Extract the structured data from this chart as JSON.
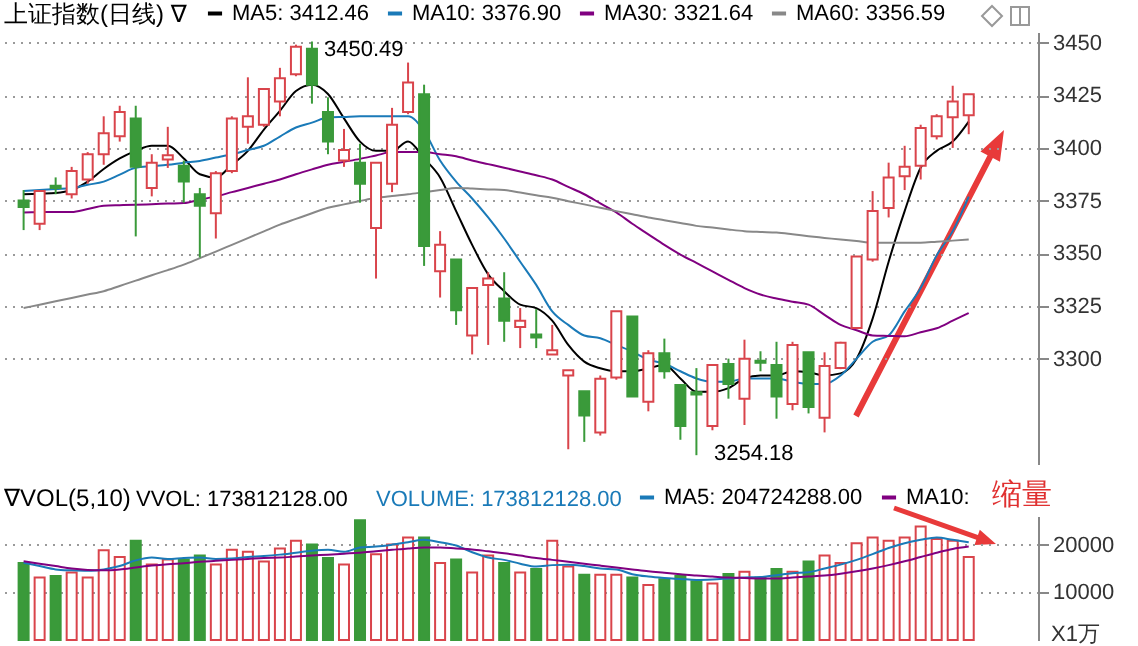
{
  "chart_data": [
    {
      "type": "candlestick",
      "title": "上证指数(日线) ∇",
      "categories": [
        null,
        null,
        null,
        null,
        null,
        null,
        null,
        null,
        null,
        null,
        null,
        null,
        null,
        null,
        null,
        null,
        null,
        null,
        null,
        null,
        null,
        null,
        null,
        null,
        null,
        null,
        null,
        null,
        null,
        null,
        null,
        null,
        null,
        null,
        null,
        null,
        null,
        null,
        null,
        null,
        null,
        null,
        null,
        null,
        null,
        null,
        null,
        null,
        null,
        null,
        null,
        null,
        null,
        null,
        null,
        null,
        null,
        null,
        null,
        null
      ],
      "ohlc": [
        [
          3375,
          3380,
          3361,
          3372
        ],
        [
          3364,
          3380,
          3361,
          3379.5
        ],
        [
          3382,
          3386,
          3378,
          3381
        ],
        [
          3378,
          3391,
          3376,
          3389
        ],
        [
          3385,
          3398,
          3383,
          3397
        ],
        [
          3397,
          3415,
          3392,
          3407
        ],
        [
          3405.5,
          3420,
          3403,
          3417
        ],
        [
          3414,
          3420,
          3358,
          3391
        ],
        [
          3381,
          3397,
          3377,
          3393
        ],
        [
          3394.5,
          3410,
          3390.5,
          3396.5
        ],
        [
          3391.5,
          3394,
          3374,
          3384
        ],
        [
          3378,
          3381,
          3348,
          3372.5
        ],
        [
          3369,
          3389,
          3357,
          3388
        ],
        [
          3389,
          3415,
          3388,
          3414
        ],
        [
          3410,
          3433.5,
          3402,
          3415
        ],
        [
          3411,
          3428,
          3410,
          3428
        ],
        [
          3422,
          3438,
          3415,
          3433
        ],
        [
          3435,
          3449,
          3434,
          3448
        ],
        [
          3447,
          3450.49,
          3421,
          3430
        ],
        [
          3417,
          3424,
          3397,
          3403
        ],
        [
          3394,
          3409,
          3391,
          3399
        ],
        [
          3393,
          3402,
          3374,
          3383
        ],
        [
          3362,
          3393,
          3338,
          3393
        ],
        [
          3383,
          3419,
          3379,
          3411
        ],
        [
          3417,
          3440.5,
          3416,
          3431
        ],
        [
          3425.5,
          3430,
          3344,
          3353.5
        ],
        [
          3341.5,
          3360.5,
          3329,
          3354
        ],
        [
          3347,
          3347,
          3316,
          3323
        ],
        [
          3311,
          3333.5,
          3302,
          3333.5
        ],
        [
          3335,
          3341,
          3306.5,
          3338
        ],
        [
          3328.5,
          3341,
          3308,
          3318
        ],
        [
          3315,
          3324,
          3305,
          3318
        ],
        [
          3311.5,
          3323.5,
          3305,
          3310
        ],
        [
          3302,
          3316,
          3302,
          3304
        ],
        [
          3292,
          3294.5,
          3257,
          3294.5
        ],
        [
          3284.5,
          3284.5,
          3260.5,
          3273
        ],
        [
          3265,
          3292,
          3263.5,
          3290.5
        ],
        [
          3291,
          3322.5,
          3290,
          3322.5
        ],
        [
          3320,
          3320,
          3282,
          3282
        ],
        [
          3279.5,
          3304,
          3275,
          3302.5
        ],
        [
          3302.5,
          3309.5,
          3290.5,
          3294
        ],
        [
          3287.5,
          3287.5,
          3261.5,
          3268
        ],
        [
          3284,
          3295.5,
          3254.18,
          3283
        ],
        [
          3268,
          3297,
          3266,
          3297
        ],
        [
          3297.5,
          3300,
          3281,
          3288
        ],
        [
          3281,
          3309,
          3268.5,
          3300
        ],
        [
          3299,
          3303.5,
          3294,
          3298
        ],
        [
          3297,
          3308,
          3271.5,
          3282
        ],
        [
          3278.5,
          3308,
          3275.5,
          3306.5
        ],
        [
          3303,
          3303,
          3274,
          3277
        ],
        [
          3272,
          3303,
          3265,
          3296.5
        ],
        [
          3295.5,
          3308,
          3295,
          3307.5
        ],
        [
          3314.5,
          3348.5,
          3314,
          3348.5
        ],
        [
          3347,
          3379.5,
          3346,
          3370
        ],
        [
          3371.5,
          3393,
          3367,
          3386
        ],
        [
          3386.5,
          3401,
          3380,
          3391
        ],
        [
          3391.5,
          3411,
          3385,
          3409.5
        ],
        [
          3405.5,
          3416,
          3404,
          3415
        ],
        [
          3414.5,
          3429.5,
          3400,
          3422
        ],
        [
          3415.5,
          3425.5,
          3406.5,
          3425.5
        ]
      ],
      "colors": [
        "#3a9a3a",
        "#d9444b",
        "#3a9a3a",
        "#d9444b",
        "#d9444b",
        "#d9444b",
        "#d9444b",
        "#3a9a3a",
        "#d9444b",
        "#d9444b",
        "#3a9a3a",
        "#3a9a3a",
        "#d9444b",
        "#d9444b",
        "#d9444b",
        "#d9444b",
        "#d9444b",
        "#d9444b",
        "#3a9a3a",
        "#3a9a3a",
        "#d9444b",
        "#3a9a3a",
        "#d9444b",
        "#d9444b",
        "#d9444b",
        "#3a9a3a",
        "#d9444b",
        "#3a9a3a",
        "#d9444b",
        "#d9444b",
        "#3a9a3a",
        "#d9444b",
        "#3a9a3a",
        "#d9444b",
        "#d9444b",
        "#3a9a3a",
        "#d9444b",
        "#d9444b",
        "#3a9a3a",
        "#d9444b",
        "#3a9a3a",
        "#3a9a3a",
        "#3a9a3a",
        "#d9444b",
        "#3a9a3a",
        "#d9444b",
        "#3a9a3a",
        "#3a9a3a",
        "#d9444b",
        "#3a9a3a",
        "#d9444b",
        "#d9444b",
        "#d9444b",
        "#d9444b",
        "#d9444b",
        "#d9444b",
        "#d9444b",
        "#d9444b",
        "#d9444b",
        "#d9444b"
      ],
      "series": [
        {
          "type": "line",
          "name": "MA5: 3412.46",
          "color": "#000000",
          "values": [
            3378,
            3378.3,
            3378.6,
            3380,
            3384,
            3390,
            3395,
            3398.6,
            3401,
            3401,
            3395,
            3387.5,
            3386,
            3392,
            3398.6,
            3408.7,
            3417.6,
            3427,
            3430,
            3425.6,
            3414,
            3403,
            3398.6,
            3398.6,
            3403,
            3395,
            3386,
            3370,
            3354,
            3340,
            3332,
            3325.6,
            3324,
            3318,
            3306.5,
            3298.6,
            3295.4,
            3294,
            3294,
            3295.4,
            3297,
            3290.6,
            3284.3,
            3284.3,
            3286,
            3290.6,
            3292,
            3292,
            3294,
            3293.5,
            3292,
            3293,
            3300,
            3319,
            3346,
            3370,
            3390.6,
            3398.6,
            3403,
            3412.46
          ]
        },
        {
          "type": "line",
          "name": "MA10: 3376.90",
          "color": "#1a7ab8",
          "values": [
            3379.5,
            3380,
            3380.5,
            3381,
            3382.5,
            3384,
            3387.3,
            3390.6,
            3391.3,
            3392,
            3393,
            3393.8,
            3395.4,
            3397,
            3399,
            3401,
            3405.4,
            3409.7,
            3412,
            3414.4,
            3414.7,
            3415,
            3415,
            3415,
            3415,
            3408,
            3394,
            3384,
            3376,
            3367,
            3357,
            3346,
            3335,
            3322.4,
            3316,
            3311,
            3309.7,
            3306.5,
            3303.3,
            3299.5,
            3297.6,
            3294,
            3290.6,
            3289,
            3289,
            3290.6,
            3290.6,
            3290.6,
            3289,
            3288,
            3288,
            3292,
            3300,
            3308,
            3311,
            3322.4,
            3333.5,
            3349,
            3360.5,
            3376.9
          ]
        },
        {
          "type": "line",
          "name": "MA30: 3321.64",
          "color": "#800080",
          "values": [
            3369.4,
            3369.5,
            3369.6,
            3369.6,
            3371,
            3372.5,
            3372.8,
            3373,
            3373.3,
            3373.6,
            3373.8,
            3375.4,
            3377,
            3379,
            3381,
            3383,
            3385,
            3387.5,
            3389.8,
            3392,
            3393.4,
            3394.8,
            3396.4,
            3398,
            3398,
            3398,
            3397,
            3396,
            3394,
            3392.3,
            3390.6,
            3388.8,
            3387,
            3385,
            3381.5,
            3378,
            3373.7,
            3369.4,
            3364,
            3359,
            3354,
            3349.4,
            3345.4,
            3341.4,
            3337.4,
            3333.5,
            3330.4,
            3328.5,
            3327,
            3325.6,
            3320.8,
            3316,
            3313.5,
            3311,
            3310.8,
            3310.6,
            3312.5,
            3314.4,
            3318,
            3321.64
          ]
        },
        {
          "type": "line",
          "name": "MA60: 3356.59",
          "color": "#888888",
          "values": [
            3324,
            3325.6,
            3327.2,
            3328.8,
            3330.4,
            3332,
            3334.5,
            3337,
            3339.6,
            3342,
            3344.6,
            3347.7,
            3350.8,
            3354,
            3357.2,
            3360.4,
            3363.6,
            3366.3,
            3369,
            3371.6,
            3373.2,
            3374.8,
            3376.3,
            3377.2,
            3378,
            3379,
            3380,
            3381,
            3380.7,
            3380.3,
            3380,
            3378.8,
            3377.5,
            3376.3,
            3374.7,
            3373.2,
            3371.6,
            3370,
            3368.5,
            3367,
            3365.7,
            3364.4,
            3363,
            3362.2,
            3361.3,
            3360.5,
            3360.1,
            3359.8,
            3359,
            3358.1,
            3357.3,
            3356.5,
            3355.8,
            3355,
            3355,
            3355,
            3355,
            3355.5,
            3356,
            3356.59
          ]
        }
      ],
      "ylim": [
        3250,
        3455
      ],
      "yticks": [
        3300,
        3325,
        3350,
        3375,
        3400,
        3425,
        3450
      ],
      "grid": "y",
      "legend": "top",
      "tick_labels": "y",
      "annotations": [
        "3450.49",
        "3254.18"
      ]
    },
    {
      "type": "bar",
      "title": "∇VOL(5,10)",
      "categories": [
        null,
        null,
        null,
        null,
        null,
        null,
        null,
        null,
        null,
        null,
        null,
        null,
        null,
        null,
        null,
        null,
        null,
        null,
        null,
        null,
        null,
        null,
        null,
        null,
        null,
        null,
        null,
        null,
        null,
        null,
        null,
        null,
        null,
        null,
        null,
        null,
        null,
        null,
        null,
        null,
        null,
        null,
        null,
        null,
        null,
        null,
        null,
        null,
        null,
        null,
        null,
        null,
        null,
        null,
        null,
        null,
        null,
        null,
        null,
        null
      ],
      "series": [
        {
          "colors": [
            "#3a9a3a",
            "#d9444b",
            "#3a9a3a",
            "#d9444b",
            "#d9444b",
            "#d9444b",
            "#d9444b",
            "#3a9a3a",
            "#d9444b",
            "#d9444b",
            "#3a9a3a",
            "#3a9a3a",
            "#d9444b",
            "#d9444b",
            "#d9444b",
            "#d9444b",
            "#d9444b",
            "#d9444b",
            "#3a9a3a",
            "#3a9a3a",
            "#d9444b",
            "#3a9a3a",
            "#d9444b",
            "#d9444b",
            "#d9444b",
            "#3a9a3a",
            "#d9444b",
            "#3a9a3a",
            "#d9444b",
            "#d9444b",
            "#3a9a3a",
            "#d9444b",
            "#3a9a3a",
            "#d9444b",
            "#d9444b",
            "#3a9a3a",
            "#d9444b",
            "#d9444b",
            "#3a9a3a",
            "#d9444b",
            "#3a9a3a",
            "#3a9a3a",
            "#3a9a3a",
            "#d9444b",
            "#3a9a3a",
            "#d9444b",
            "#3a9a3a",
            "#3a9a3a",
            "#d9444b",
            "#3a9a3a",
            "#d9444b",
            "#d9444b",
            "#d9444b",
            "#d9444b",
            "#d9444b",
            "#d9444b",
            "#d9444b",
            "#d9444b",
            "#d9444b",
            "#d9444b"
          ],
          "values": [
            16150,
            13100,
            13400,
            14150,
            13100,
            18800,
            17400,
            20800,
            15850,
            16900,
            16900,
            17700,
            15850,
            18900,
            18500,
            16450,
            19200,
            20800,
            20000,
            17200,
            15850,
            25100,
            18000,
            20000,
            21500,
            21500,
            16150,
            16900,
            14150,
            17700,
            16150,
            14150,
            14900,
            20800,
            15400,
            13700,
            13700,
            13700,
            13100,
            11550,
            12750,
            13400,
            12300,
            11850,
            13850,
            14300,
            13100,
            14900,
            14300,
            16450,
            17700,
            16150,
            20300,
            21500,
            20800,
            21500,
            23800,
            21200,
            20800,
            17381
          ]
        },
        {
          "type": "line",
          "name": "MA5: 204724288.00",
          "color": "#1a7ab8",
          "values": [
            16200,
            15500,
            14800,
            14600,
            14500,
            14800,
            15500,
            16700,
            17300,
            17000,
            17200,
            17300,
            17000,
            17100,
            17400,
            17600,
            17900,
            18300,
            18700,
            18900,
            18500,
            19400,
            19600,
            20000,
            20500,
            21000,
            20500,
            19800,
            18400,
            17300,
            16800,
            16000,
            15400,
            15700,
            15800,
            15500,
            15000,
            14800,
            13800,
            13300,
            13000,
            12800,
            12600,
            12700,
            12900,
            13100,
            13200,
            13600,
            14000,
            14200,
            15000,
            15800,
            16800,
            18000,
            19300,
            20300,
            21000,
            21500,
            21000,
            20472
          ]
        },
        {
          "type": "line",
          "name": "MA10:",
          "color": "#800080",
          "values": [
            16500,
            16000,
            15500,
            15000,
            14700,
            14600,
            14800,
            15200,
            15600,
            15900,
            16100,
            16400,
            16600,
            16800,
            17000,
            17200,
            17300,
            17500,
            17700,
            17900,
            18100,
            18300,
            18600,
            18900,
            19200,
            19400,
            19400,
            19200,
            19000,
            18600,
            18200,
            17700,
            17200,
            16800,
            16400,
            16000,
            15600,
            15200,
            14800,
            14400,
            14100,
            13800,
            13500,
            13300,
            13100,
            13000,
            12900,
            12900,
            13100,
            13300,
            13500,
            13900,
            14400,
            15000,
            15700,
            16500,
            17400,
            18300,
            19100,
            19600
          ]
        }
      ],
      "ylim": [
        0,
        26000
      ],
      "yticks": [
        10000,
        20000
      ],
      "ylabel": "X1万",
      "grid": "y",
      "legend": "top right",
      "tick_labels": "y",
      "annotations": [
        "VVOL: 173812128.00",
        "VOLUME: 173812128.00",
        "缩量"
      ]
    }
  ]
}
